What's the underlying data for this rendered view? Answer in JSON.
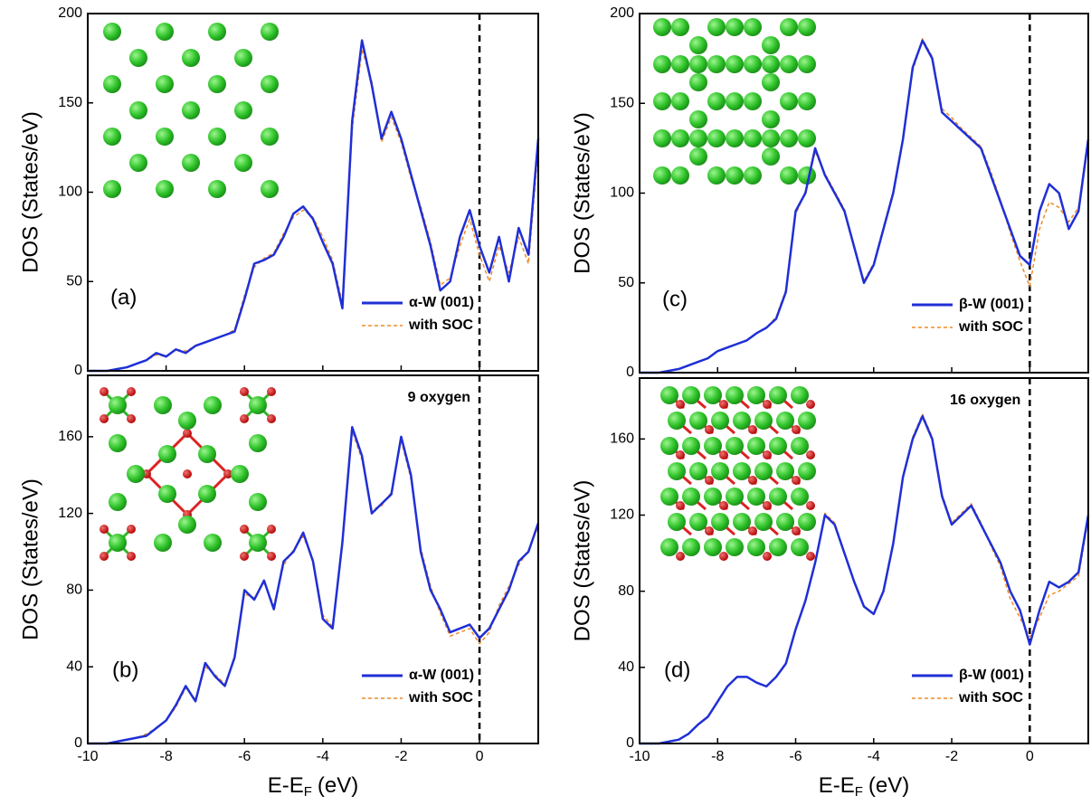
{
  "chart_data": [
    {
      "type": "line",
      "panel_label": "(a)",
      "ylabel": "DOS (States/eV)",
      "x": [
        -10,
        -9.75,
        -9.5,
        -9.25,
        -9,
        -8.75,
        -8.5,
        -8.25,
        -8,
        -7.75,
        -7.5,
        -7.25,
        -7,
        -6.75,
        -6.5,
        -6.25,
        -6,
        -5.75,
        -5.5,
        -5.25,
        -5,
        -4.75,
        -4.5,
        -4.25,
        -4,
        -3.75,
        -3.5,
        -3.25,
        -3,
        -2.75,
        -2.5,
        -2.25,
        -2,
        -1.75,
        -1.5,
        -1.25,
        -1,
        -0.75,
        -0.5,
        -0.25,
        0,
        0.25,
        0.5,
        0.75,
        1,
        1.25,
        1.5
      ],
      "xlim": [
        -10,
        1.5
      ],
      "xticks": [
        -10,
        -8,
        -6,
        -4,
        -2,
        0
      ],
      "ylim": [
        0,
        200
      ],
      "yticks": [
        0,
        50,
        100,
        150,
        200
      ],
      "vline": 0,
      "legend": "lower-right",
      "series": [
        {
          "name": "α-W (001)",
          "color": "#1f2fd6",
          "dash": false,
          "values": [
            0,
            0,
            0,
            1,
            2,
            4,
            6,
            10,
            8,
            12,
            10,
            14,
            16,
            18,
            20,
            22,
            40,
            60,
            62,
            65,
            75,
            88,
            92,
            85,
            72,
            60,
            35,
            140,
            185,
            160,
            130,
            145,
            130,
            110,
            90,
            70,
            45,
            50,
            75,
            90,
            70,
            55,
            75,
            50,
            80,
            65,
            130
          ]
        },
        {
          "name": "with SOC",
          "color": "#f08a24",
          "dash": true,
          "values": [
            0,
            0,
            0,
            1,
            2,
            4,
            6,
            9,
            8,
            12,
            11,
            14,
            16,
            18,
            20,
            23,
            42,
            58,
            63,
            66,
            77,
            86,
            90,
            86,
            75,
            62,
            38,
            135,
            180,
            162,
            128,
            142,
            128,
            108,
            92,
            72,
            48,
            52,
            70,
            85,
            65,
            50,
            70,
            55,
            75,
            60,
            125
          ]
        }
      ]
    },
    {
      "type": "line",
      "panel_label": "(b)",
      "ylabel": "DOS (States/eV)",
      "annotation": "9 oxygen",
      "xlabel": [
        "E-E",
        "F",
        "(eV)"
      ],
      "x": [
        -10,
        -9.75,
        -9.5,
        -9.25,
        -9,
        -8.75,
        -8.5,
        -8.25,
        -8,
        -7.75,
        -7.5,
        -7.25,
        -7,
        -6.75,
        -6.5,
        -6.25,
        -6,
        -5.75,
        -5.5,
        -5.25,
        -5,
        -4.75,
        -4.5,
        -4.25,
        -4,
        -3.75,
        -3.5,
        -3.25,
        -3,
        -2.75,
        -2.5,
        -2.25,
        -2,
        -1.75,
        -1.5,
        -1.25,
        -1,
        -0.75,
        -0.5,
        -0.25,
        0,
        0.25,
        0.5,
        0.75,
        1,
        1.25,
        1.5
      ],
      "xlim": [
        -10,
        1.5
      ],
      "xticks": [
        -10,
        -8,
        -6,
        -4,
        -2,
        0
      ],
      "ylim": [
        0,
        192
      ],
      "yticks": [
        0,
        40,
        80,
        120,
        160
      ],
      "vline": 0,
      "legend": "lower-right",
      "series": [
        {
          "name": "α-W (001)",
          "color": "#1f2fd6",
          "dash": false,
          "values": [
            0,
            0,
            0,
            1,
            2,
            3,
            4,
            8,
            12,
            20,
            30,
            22,
            42,
            35,
            30,
            45,
            80,
            75,
            85,
            70,
            95,
            100,
            110,
            95,
            65,
            60,
            105,
            165,
            150,
            120,
            125,
            130,
            160,
            140,
            100,
            80,
            70,
            58,
            60,
            62,
            55,
            60,
            70,
            80,
            95,
            100,
            115
          ]
        },
        {
          "name": "with SOC",
          "color": "#f08a24",
          "dash": true,
          "values": [
            0,
            0,
            0,
            1,
            2,
            3,
            5,
            8,
            12,
            19,
            29,
            23,
            40,
            36,
            31,
            44,
            78,
            76,
            84,
            72,
            93,
            101,
            108,
            96,
            67,
            61,
            103,
            163,
            148,
            122,
            124,
            131,
            158,
            138,
            102,
            82,
            68,
            56,
            58,
            60,
            52,
            58,
            72,
            82,
            93,
            101,
            113
          ]
        }
      ]
    },
    {
      "type": "line",
      "panel_label": "(c)",
      "ylabel": "DOS (States/eV)",
      "x": [
        -10,
        -9.75,
        -9.5,
        -9.25,
        -9,
        -8.75,
        -8.5,
        -8.25,
        -8,
        -7.75,
        -7.5,
        -7.25,
        -7,
        -6.75,
        -6.5,
        -6.25,
        -6,
        -5.75,
        -5.5,
        -5.25,
        -5,
        -4.75,
        -4.5,
        -4.25,
        -4,
        -3.75,
        -3.5,
        -3.25,
        -3,
        -2.75,
        -2.5,
        -2.25,
        -2,
        -1.75,
        -1.5,
        -1.25,
        -1,
        -0.75,
        -0.5,
        -0.25,
        0,
        0.25,
        0.5,
        0.75,
        1,
        1.25,
        1.5
      ],
      "xlim": [
        -10,
        1.5
      ],
      "xticks": [
        -10,
        -8,
        -6,
        -4,
        -2,
        0
      ],
      "ylim": [
        0,
        200
      ],
      "yticks": [
        0,
        50,
        100,
        150,
        200
      ],
      "vline": 0,
      "legend": "lower-right",
      "series": [
        {
          "name": "β-W (001)",
          "color": "#1f2fd6",
          "dash": false,
          "values": [
            0,
            0,
            0,
            1,
            2,
            4,
            6,
            8,
            12,
            14,
            16,
            18,
            22,
            25,
            30,
            45,
            90,
            100,
            125,
            110,
            100,
            90,
            70,
            50,
            60,
            80,
            100,
            130,
            170,
            185,
            175,
            145,
            140,
            135,
            130,
            125,
            110,
            95,
            80,
            65,
            60,
            90,
            105,
            100,
            80,
            90,
            130
          ]
        },
        {
          "name": "with SOC",
          "color": "#f08a24",
          "dash": true,
          "values": [
            0,
            0,
            0,
            1,
            2,
            4,
            6,
            8,
            12,
            14,
            16,
            18,
            22,
            25,
            31,
            46,
            88,
            101,
            123,
            111,
            101,
            91,
            71,
            51,
            61,
            81,
            101,
            131,
            168,
            186,
            176,
            147,
            142,
            136,
            131,
            126,
            112,
            96,
            78,
            62,
            48,
            80,
            95,
            92,
            84,
            92,
            132
          ]
        }
      ]
    },
    {
      "type": "line",
      "panel_label": "(d)",
      "ylabel": "DOS (States/eV)",
      "annotation": "16 oxygen",
      "xlabel": [
        "E-E",
        "F",
        "(eV)"
      ],
      "x": [
        -10,
        -9.75,
        -9.5,
        -9.25,
        -9,
        -8.75,
        -8.5,
        -8.25,
        -8,
        -7.75,
        -7.5,
        -7.25,
        -7,
        -6.75,
        -6.5,
        -6.25,
        -6,
        -5.75,
        -5.5,
        -5.25,
        -5,
        -4.75,
        -4.5,
        -4.25,
        -4,
        -3.75,
        -3.5,
        -3.25,
        -3,
        -2.75,
        -2.5,
        -2.25,
        -2,
        -1.75,
        -1.5,
        -1.25,
        -1,
        -0.75,
        -0.5,
        -0.25,
        0,
        0.25,
        0.5,
        0.75,
        1,
        1.25,
        1.5
      ],
      "xlim": [
        -10,
        1.5
      ],
      "xticks": [
        -10,
        -8,
        -6,
        -4,
        -2,
        0
      ],
      "ylim": [
        0,
        192
      ],
      "yticks": [
        0,
        40,
        80,
        120,
        160
      ],
      "vline": 0,
      "legend": "lower-right",
      "series": [
        {
          "name": "β-W (001)",
          "color": "#1f2fd6",
          "dash": false,
          "values": [
            0,
            0,
            0,
            1,
            2,
            5,
            10,
            14,
            22,
            30,
            35,
            35,
            32,
            30,
            35,
            42,
            60,
            75,
            95,
            120,
            115,
            100,
            85,
            72,
            68,
            80,
            105,
            140,
            160,
            172,
            160,
            130,
            115,
            120,
            125,
            115,
            105,
            95,
            80,
            70,
            52,
            70,
            85,
            82,
            85,
            90,
            120
          ]
        },
        {
          "name": "with SOC",
          "color": "#f08a24",
          "dash": true,
          "values": [
            0,
            0,
            0,
            1,
            2,
            5,
            10,
            14,
            22,
            30,
            35,
            35,
            32,
            30,
            35,
            42,
            60,
            75,
            95,
            121,
            116,
            100,
            85,
            72,
            68,
            80,
            105,
            140,
            161,
            173,
            161,
            131,
            116,
            121,
            126,
            116,
            104,
            93,
            76,
            66,
            56,
            66,
            78,
            80,
            84,
            88,
            118
          ]
        }
      ]
    }
  ]
}
